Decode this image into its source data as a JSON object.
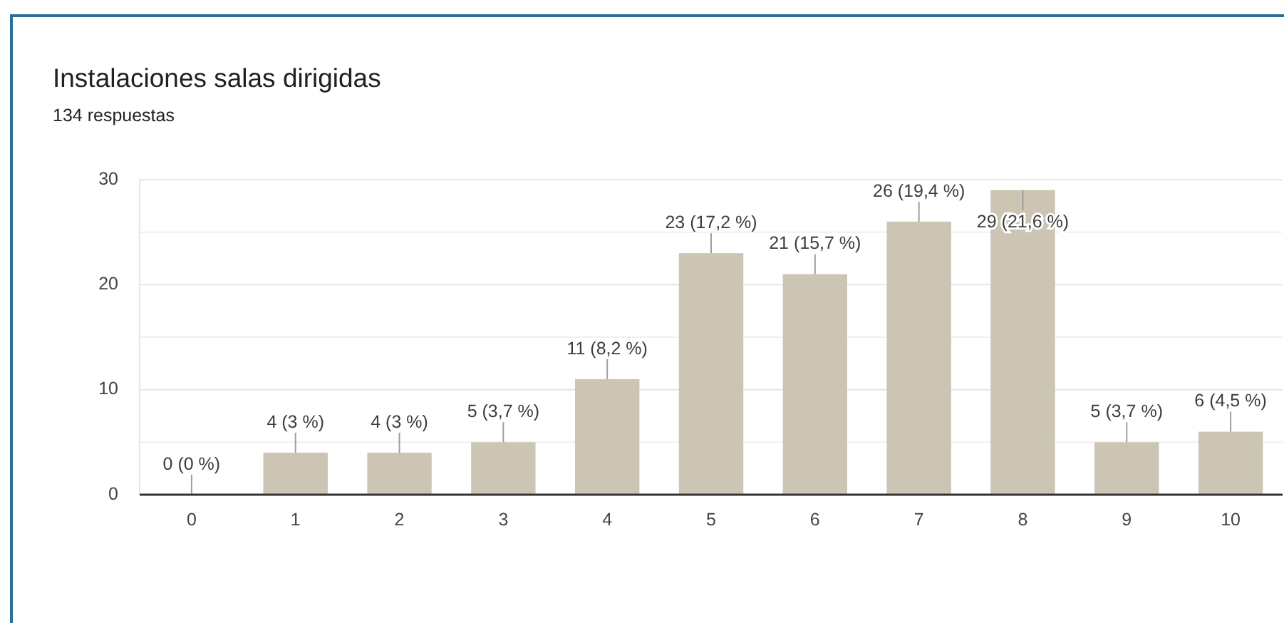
{
  "chart_data": {
    "type": "bar",
    "title": "Instalaciones salas dirigidas",
    "subtitle": "134 respuestas",
    "categories": [
      "0",
      "1",
      "2",
      "3",
      "4",
      "5",
      "6",
      "7",
      "8",
      "9",
      "10"
    ],
    "values": [
      0,
      4,
      4,
      5,
      11,
      23,
      21,
      26,
      29,
      5,
      6
    ],
    "color": "#cdc5b3",
    "value_labels": [
      "0 (0 %)",
      "4 (3 %)",
      "4 (3 %)",
      "5 (3,7 %)",
      "11 (8,2 %)",
      "23 (17,2 %)",
      "21 (15,7 %)",
      "26 (19,4 %)",
      "29 (21,6 %)",
      "5 (3,7 %)",
      "6 (4,5 %)"
    ],
    "ylim": [
      0,
      30
    ],
    "yticks": [
      0,
      {
        "value": 5,
        "label": null
      },
      10,
      {
        "value": 15,
        "label": null
      },
      20,
      {
        "value": 25,
        "label": null
      },
      30
    ],
    "grid": "y"
  }
}
